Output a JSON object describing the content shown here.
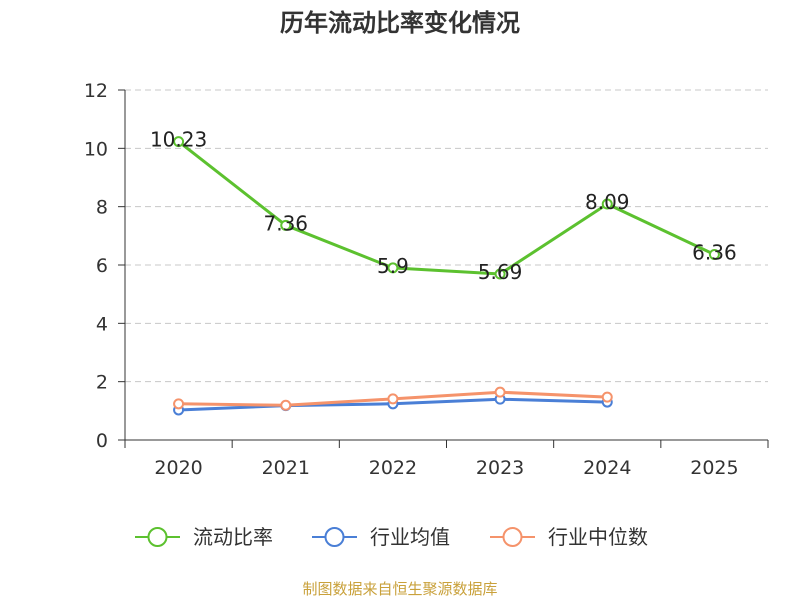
{
  "footer": "制图数据来自恒生聚源数据库",
  "chart_data": {
    "type": "line",
    "title": "历年流动比率变化情况",
    "xlabel": "",
    "ylabel": "",
    "categories": [
      "2020",
      "2021",
      "2022",
      "2023",
      "2024",
      "2025"
    ],
    "ylim": [
      0,
      12
    ],
    "yticks": [
      0,
      2,
      4,
      6,
      8,
      10,
      12
    ],
    "grid": true,
    "legend": "bottom",
    "series": [
      {
        "name": "流动比率",
        "color": "#5cc12f",
        "show_labels": true,
        "values": [
          10.23,
          7.36,
          5.9,
          5.69,
          8.09,
          6.36
        ]
      },
      {
        "name": "行业均值",
        "color": "#4a7fd6",
        "show_labels": false,
        "values": [
          1.03,
          1.18,
          1.24,
          1.4,
          1.3,
          null
        ]
      },
      {
        "name": "行业中位数",
        "color": "#f5936b",
        "show_labels": false,
        "values": [
          1.24,
          1.19,
          1.41,
          1.64,
          1.47,
          null
        ]
      }
    ]
  }
}
